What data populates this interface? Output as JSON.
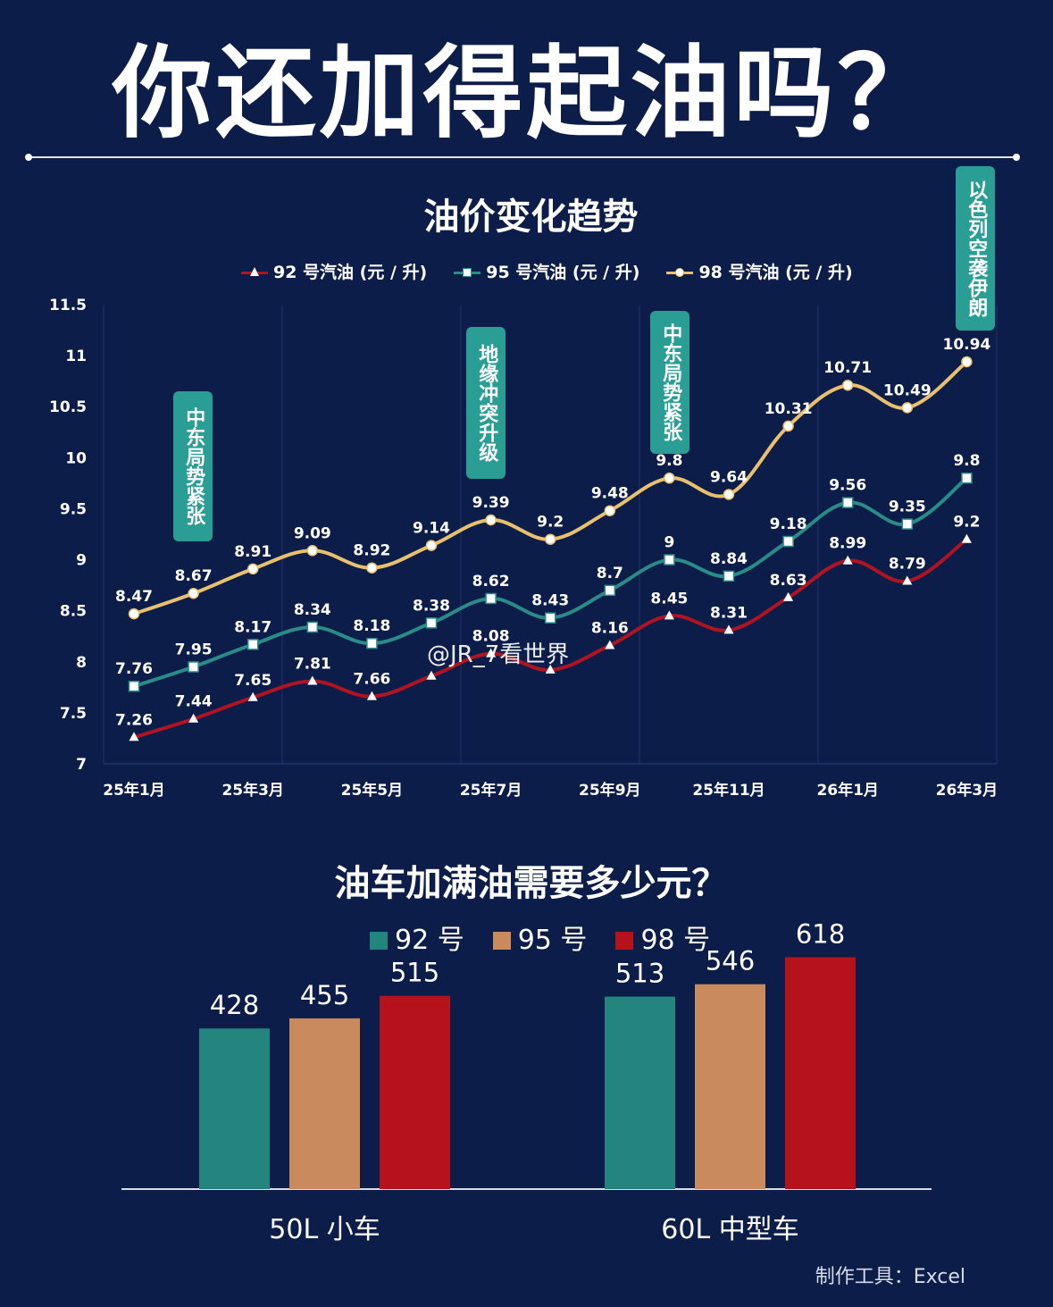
{
  "main_title": "你还加得起油吗？",
  "watermark": "@JR_7看世界",
  "tool_note": "制作工具：Excel",
  "colors": {
    "background": "#0c1d4a",
    "p92_line": "#b01420",
    "p95_line": "#2a8c88",
    "p98_line": "#e9c06e",
    "event_box": "#2a9d94",
    "bar_92": "#24857f",
    "bar_95": "#c98a5e",
    "bar_98": "#b5121c"
  },
  "chart_data": [
    {
      "type": "line",
      "title": "油价变化趋势",
      "x": [
        "25年1月",
        "25年2月",
        "25年3月",
        "25年4月",
        "25年5月",
        "25年6月",
        "25年7月",
        "25年8月",
        "25年9月",
        "25年10月",
        "25年11月",
        "25年12月",
        "26年1月",
        "26年2月",
        "26年3月"
      ],
      "xtick_labels": [
        "25年1月",
        "25年3月",
        "25年5月",
        "25年7月",
        "25年9月",
        "25年11月",
        "26年1月",
        "26年3月"
      ],
      "yticks": [
        "7",
        "7.5",
        "8",
        "8.5",
        "9",
        "9.5",
        "10",
        "10.5",
        "11",
        "11.5"
      ],
      "ylim": [
        7,
        11.5
      ],
      "grid": "vertical",
      "legend": "top",
      "series": [
        {
          "name": "92 号汽油 (元 / 升)",
          "marker": "triangle",
          "values": [
            7.26,
            7.44,
            7.65,
            7.81,
            7.66,
            7.86,
            8.08,
            7.92,
            8.16,
            8.45,
            8.31,
            8.63,
            8.99,
            8.79,
            9.2
          ],
          "labels": [
            "7.26",
            "7.44",
            "7.65",
            "7.81",
            "7.66",
            "",
            "8.08",
            "",
            "8.16",
            "8.45",
            "8.31",
            "8.63",
            "8.99",
            "8.79",
            "9.2"
          ]
        },
        {
          "name": "95 号汽油 (元 / 升)",
          "marker": "square",
          "values": [
            7.76,
            7.95,
            8.17,
            8.34,
            8.18,
            8.38,
            8.62,
            8.43,
            8.7,
            9,
            8.84,
            9.18,
            9.56,
            9.35,
            9.8
          ],
          "labels": [
            "7.76",
            "7.95",
            "8.17",
            "8.34",
            "8.18",
            "8.38",
            "8.62",
            "8.43",
            "8.7",
            "9",
            "8.84",
            "9.18",
            "9.56",
            "9.35",
            "9.8"
          ]
        },
        {
          "name": "98 号汽油 (元 / 升)",
          "marker": "circle",
          "values": [
            8.47,
            8.67,
            8.91,
            9.09,
            8.92,
            9.14,
            9.39,
            9.2,
            9.48,
            9.8,
            9.64,
            10.31,
            10.71,
            10.49,
            10.94
          ],
          "labels": [
            "8.47",
            "8.67",
            "8.91",
            "9.09",
            "8.92",
            "9.14",
            "9.39",
            "9.2",
            "9.48",
            "9.8",
            "9.64",
            "10.31",
            "10.71",
            "10.49",
            "10.94"
          ]
        }
      ],
      "annotations": [
        {
          "text": "中东局势紧张",
          "month": "25年2月"
        },
        {
          "text": "地缘冲突升级",
          "month": "25年7月"
        },
        {
          "text": "中东局势紧张",
          "month": "25年10月"
        },
        {
          "text": "以色列空袭伊朗",
          "month": "26年3月"
        }
      ]
    },
    {
      "type": "bar",
      "title": "油车加满油需要多少元？",
      "categories": [
        "50L 小车",
        "60L 中型车"
      ],
      "legend": "top",
      "series": [
        {
          "name": "92 号",
          "values": [
            428,
            513
          ]
        },
        {
          "name": "95 号",
          "values": [
            455,
            546
          ]
        },
        {
          "name": "98 号",
          "values": [
            515,
            618
          ]
        }
      ]
    }
  ]
}
